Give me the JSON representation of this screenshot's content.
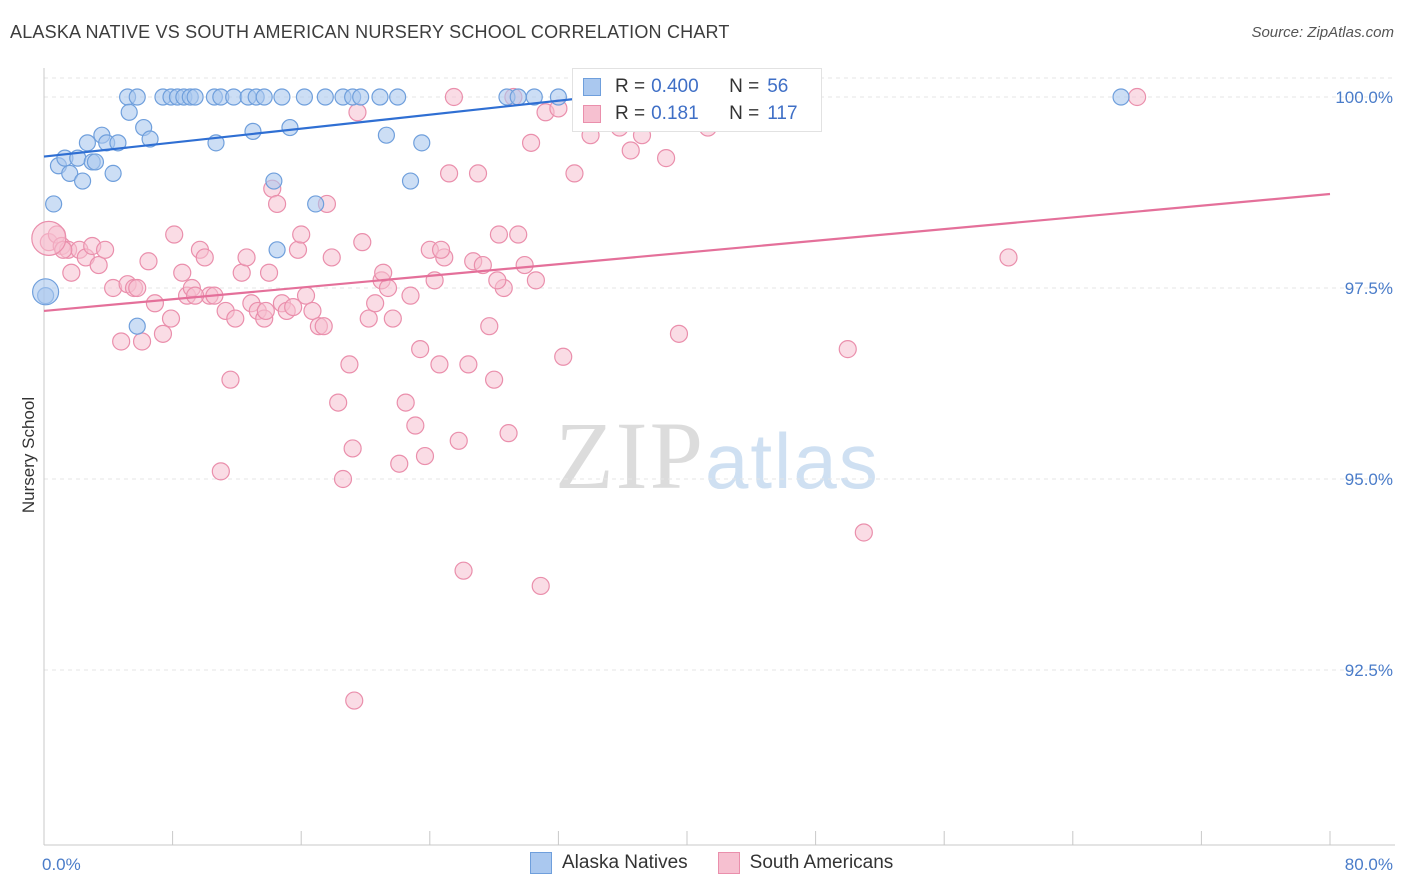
{
  "header": {
    "title": "ALASKA NATIVE VS SOUTH AMERICAN NURSERY SCHOOL CORRELATION CHART",
    "source": "Source: ZipAtlas.com"
  },
  "watermark": {
    "zip": "ZIP",
    "atlas": "atlas"
  },
  "legend": {
    "rows": [
      {
        "r_label": "R = ",
        "r_value": "0.400",
        "n_label": "N = ",
        "n_value": "56",
        "fill": "#aac8ef",
        "stroke": "#6f9fdc"
      },
      {
        "r_label": "R = ",
        "r_value": "0.181",
        "n_label": "N = ",
        "n_value": "117",
        "fill": "#f6c0d0",
        "stroke": "#ea8fac"
      }
    ]
  },
  "bottom_legend": [
    {
      "label": "Alaska Natives",
      "fill": "#aac8ef",
      "stroke": "#6f9fdc"
    },
    {
      "label": "South Americans",
      "fill": "#f6c0d0",
      "stroke": "#ea8fac"
    }
  ],
  "chart_data": {
    "type": "scatter",
    "title": "ALASKA NATIVE VS SOUTH AMERICAN NURSERY SCHOOL CORRELATION CHART",
    "xlabel": "",
    "ylabel": "Nursery School",
    "xlim": [
      0,
      80
    ],
    "ylim": [
      90.0,
      100.3
    ],
    "x_tick_labels": [
      "0.0%",
      "80.0%"
    ],
    "y_ticks": [
      {
        "value": 100.0,
        "label": "100.0%"
      },
      {
        "value": 97.5,
        "label": "97.5%"
      },
      {
        "value": 95.0,
        "label": "95.0%"
      },
      {
        "value": 92.5,
        "label": "92.5%"
      }
    ],
    "grid": "horizontal dashed",
    "colors": {
      "blue": "#6f9fdc",
      "blue_fill": "#aac8ef",
      "pink": "#ea8fac",
      "pink_fill": "#f6c0d0",
      "blue_line": "#2f6fd3",
      "pink_line": "#e4709a"
    },
    "series": [
      {
        "name": "Alaska Natives",
        "color": "#6f9fdc",
        "trend": {
          "x": [
            0,
            35
          ],
          "y": [
            99.22,
            100.02
          ]
        },
        "points": [
          [
            0.1,
            97.4
          ],
          [
            0.6,
            98.6
          ],
          [
            0.9,
            99.1
          ],
          [
            1.3,
            99.2
          ],
          [
            1.6,
            99.0
          ],
          [
            2.1,
            99.2
          ],
          [
            2.4,
            98.9
          ],
          [
            2.7,
            99.4
          ],
          [
            3.0,
            99.15
          ],
          [
            3.2,
            99.15
          ],
          [
            3.6,
            99.5
          ],
          [
            3.9,
            99.4
          ],
          [
            4.3,
            99.0
          ],
          [
            4.6,
            99.4
          ],
          [
            5.2,
            100.0
          ],
          [
            5.3,
            99.8
          ],
          [
            5.8,
            100.0
          ],
          [
            6.2,
            99.6
          ],
          [
            6.6,
            99.45
          ],
          [
            7.4,
            100.0
          ],
          [
            7.9,
            100.0
          ],
          [
            8.3,
            100.0
          ],
          [
            8.7,
            100.0
          ],
          [
            9.1,
            100.0
          ],
          [
            9.4,
            100.0
          ],
          [
            10.6,
            100.0
          ],
          [
            11.0,
            100.0
          ],
          [
            11.8,
            100.0
          ],
          [
            12.7,
            100.0
          ],
          [
            13.2,
            100.0
          ],
          [
            13.7,
            100.0
          ],
          [
            14.8,
            100.0
          ],
          [
            15.3,
            99.6
          ],
          [
            16.2,
            100.0
          ],
          [
            17.5,
            100.0
          ],
          [
            18.6,
            100.0
          ],
          [
            19.2,
            100.0
          ],
          [
            19.7,
            100.0
          ],
          [
            20.9,
            100.0
          ],
          [
            21.3,
            99.5
          ],
          [
            22.0,
            100.0
          ],
          [
            22.8,
            98.9
          ],
          [
            23.5,
            99.4
          ],
          [
            28.8,
            100.0
          ],
          [
            30.5,
            100.0
          ],
          [
            10.7,
            99.4
          ],
          [
            13.0,
            99.55
          ],
          [
            14.3,
            98.9
          ],
          [
            14.5,
            98.0
          ],
          [
            16.9,
            98.6
          ],
          [
            5.8,
            97.0
          ],
          [
            32.0,
            100.0
          ],
          [
            37.5,
            100.0
          ],
          [
            38.0,
            100.0
          ],
          [
            67.0,
            100.0
          ],
          [
            29.5,
            100.0
          ]
        ]
      },
      {
        "name": "South Americans",
        "color": "#ea8fac",
        "trend": {
          "x": [
            0,
            80
          ],
          "y": [
            97.2,
            98.73
          ]
        },
        "points": [
          [
            0.3,
            98.1
          ],
          [
            0.8,
            98.2
          ],
          [
            1.1,
            98.05
          ],
          [
            1.5,
            98.0
          ],
          [
            1.7,
            97.7
          ],
          [
            2.2,
            98.0
          ],
          [
            2.6,
            97.9
          ],
          [
            3.0,
            98.05
          ],
          [
            3.4,
            97.8
          ],
          [
            3.8,
            98.0
          ],
          [
            4.3,
            97.5
          ],
          [
            4.8,
            96.8
          ],
          [
            5.2,
            97.55
          ],
          [
            5.6,
            97.5
          ],
          [
            6.1,
            96.8
          ],
          [
            6.5,
            97.85
          ],
          [
            6.9,
            97.3
          ],
          [
            7.4,
            96.9
          ],
          [
            7.9,
            97.1
          ],
          [
            8.1,
            98.2
          ],
          [
            8.6,
            97.7
          ],
          [
            8.9,
            97.4
          ],
          [
            9.2,
            97.5
          ],
          [
            9.7,
            98.0
          ],
          [
            10.0,
            97.9
          ],
          [
            10.3,
            97.4
          ],
          [
            10.6,
            97.4
          ],
          [
            11.0,
            95.1
          ],
          [
            11.3,
            97.2
          ],
          [
            11.6,
            96.3
          ],
          [
            11.9,
            97.1
          ],
          [
            12.3,
            97.7
          ],
          [
            12.6,
            97.9
          ],
          [
            12.9,
            97.3
          ],
          [
            13.3,
            97.2
          ],
          [
            13.7,
            97.1
          ],
          [
            14.0,
            97.7
          ],
          [
            14.2,
            98.8
          ],
          [
            14.5,
            98.6
          ],
          [
            14.8,
            97.3
          ],
          [
            15.1,
            97.2
          ],
          [
            15.5,
            97.25
          ],
          [
            15.8,
            98.0
          ],
          [
            16.0,
            98.2
          ],
          [
            16.3,
            97.4
          ],
          [
            16.7,
            97.2
          ],
          [
            17.1,
            97.0
          ],
          [
            17.4,
            97.0
          ],
          [
            17.6,
            98.6
          ],
          [
            17.9,
            97.9
          ],
          [
            18.3,
            96.0
          ],
          [
            18.6,
            95.0
          ],
          [
            19.0,
            96.5
          ],
          [
            19.2,
            95.4
          ],
          [
            19.5,
            99.8
          ],
          [
            19.8,
            98.1
          ],
          [
            20.2,
            97.1
          ],
          [
            20.6,
            97.3
          ],
          [
            21.0,
            97.6
          ],
          [
            21.4,
            97.5
          ],
          [
            21.7,
            97.1
          ],
          [
            22.1,
            95.2
          ],
          [
            22.5,
            96.0
          ],
          [
            22.8,
            97.4
          ],
          [
            23.1,
            95.7
          ],
          [
            23.4,
            96.7
          ],
          [
            23.7,
            95.3
          ],
          [
            24.0,
            98.0
          ],
          [
            24.3,
            97.6
          ],
          [
            24.6,
            96.5
          ],
          [
            24.9,
            97.9
          ],
          [
            25.2,
            99.0
          ],
          [
            25.5,
            100.0
          ],
          [
            25.8,
            95.5
          ],
          [
            26.1,
            93.8
          ],
          [
            26.4,
            96.5
          ],
          [
            26.7,
            97.85
          ],
          [
            27.0,
            99.0
          ],
          [
            27.3,
            97.8
          ],
          [
            27.7,
            97.0
          ],
          [
            28.0,
            96.3
          ],
          [
            28.3,
            98.2
          ],
          [
            28.6,
            97.5
          ],
          [
            28.9,
            95.6
          ],
          [
            29.2,
            100.0
          ],
          [
            29.5,
            98.2
          ],
          [
            29.9,
            97.8
          ],
          [
            30.3,
            99.4
          ],
          [
            30.6,
            97.6
          ],
          [
            30.9,
            93.6
          ],
          [
            31.2,
            99.8
          ],
          [
            32.3,
            96.6
          ],
          [
            33.0,
            99.0
          ],
          [
            34.0,
            99.5
          ],
          [
            35.0,
            100.0
          ],
          [
            35.8,
            99.6
          ],
          [
            36.5,
            99.3
          ],
          [
            37.2,
            99.5
          ],
          [
            38.0,
            100.0
          ],
          [
            38.7,
            99.2
          ],
          [
            39.5,
            96.9
          ],
          [
            40.3,
            100.0
          ],
          [
            41.3,
            99.6
          ],
          [
            42.0,
            99.8
          ],
          [
            50.0,
            96.7
          ],
          [
            51.0,
            94.3
          ],
          [
            60.0,
            97.9
          ],
          [
            68.0,
            100.0
          ],
          [
            19.3,
            92.1
          ],
          [
            1.2,
            98.0
          ],
          [
            5.8,
            97.5
          ],
          [
            9.4,
            97.4
          ],
          [
            13.8,
            97.2
          ],
          [
            21.1,
            97.7
          ],
          [
            24.7,
            98.0
          ],
          [
            28.2,
            97.6
          ],
          [
            32.0,
            99.85
          ]
        ]
      }
    ]
  }
}
